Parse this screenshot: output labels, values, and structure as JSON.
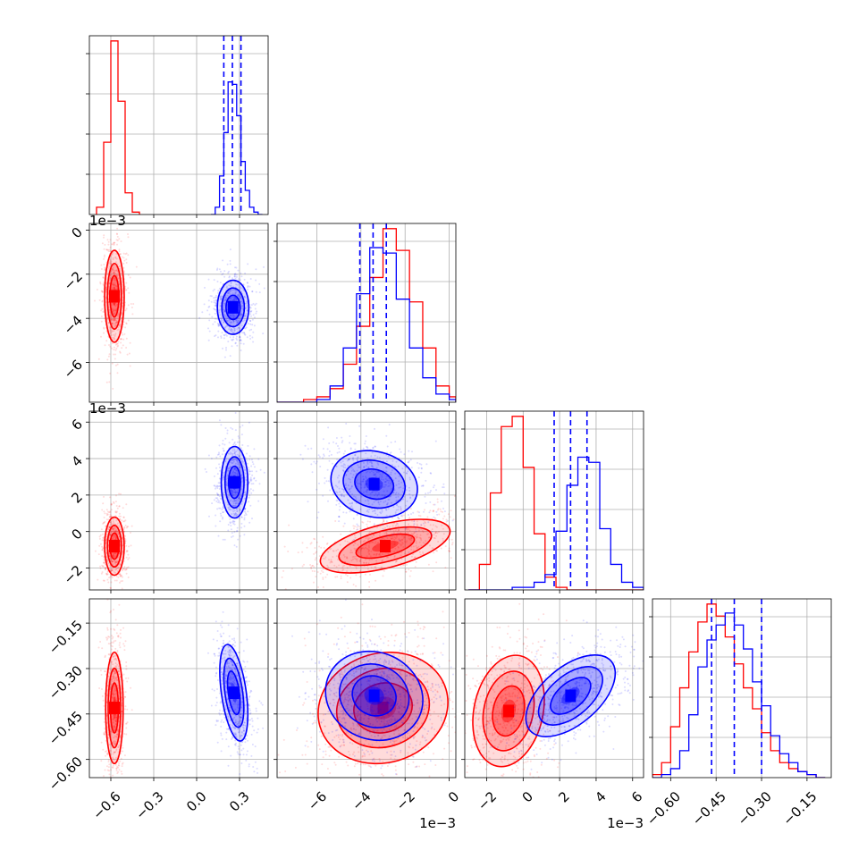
{
  "chart_data": {
    "type": "corner",
    "series": [
      {
        "name": "",
        "color": "#ff0000"
      },
      {
        "name": "",
        "color": "#0000ff"
      }
    ],
    "parameters": [
      {
        "lim": [
          -0.75,
          0.5
        ],
        "ticks": [
          -0.6,
          -0.3,
          0.0,
          0.3
        ],
        "tick_labels": [
          "−0.6",
          "−0.3",
          "0.0",
          "0.3"
        ]
      },
      {
        "lim": [
          -0.0078,
          0.0003
        ],
        "ticks": [
          -0.006,
          -0.004,
          -0.002,
          0.0
        ],
        "tick_labels": [
          "−6",
          "−4",
          "−2",
          "0"
        ],
        "offset": "1e−3"
      },
      {
        "lim": [
          -0.0032,
          0.0066
        ],
        "ticks": [
          -0.002,
          0.0,
          0.002,
          0.004,
          0.006
        ],
        "tick_labels": [
          "−2",
          "0",
          "2",
          "4",
          "6"
        ],
        "offset": "1e−3"
      },
      {
        "lim": [
          -0.66,
          -0.07
        ],
        "ticks": [
          -0.6,
          -0.45,
          -0.3,
          -0.15
        ],
        "tick_labels": [
          "−0.60",
          "−0.45",
          "−0.30",
          "−0.15"
        ]
      }
    ],
    "quantiles_blue": [
      [
        0.19,
        0.25,
        0.31
      ],
      [
        -0.00405,
        -0.00345,
        -0.00285
      ],
      [
        0.0017,
        0.0026,
        0.0035
      ],
      [
        -0.465,
        -0.39,
        -0.3
      ]
    ],
    "histograms": [
      {
        "edges": [
          -0.7,
          -0.65,
          -0.6,
          -0.55,
          -0.5,
          -0.45,
          -0.4
        ],
        "red": [
          3,
          30,
          72,
          47,
          9,
          1
        ],
        "blue_edges": [
          0.1,
          0.13,
          0.16,
          0.19,
          0.22,
          0.25,
          0.28,
          0.31,
          0.34,
          0.37,
          0.4,
          0.43,
          0.46
        ],
        "blue": [
          0,
          3,
          16,
          34,
          55,
          54,
          41,
          22,
          10,
          3,
          1,
          0
        ]
      },
      {
        "edges": [
          -0.0078,
          -0.0072,
          -0.0066,
          -0.006,
          -0.0054,
          -0.0048,
          -0.0042,
          -0.0036,
          -0.003,
          -0.0024,
          -0.0018,
          -0.0012,
          -0.0006,
          0.0,
          0.0003
        ],
        "red": [
          0,
          0,
          1,
          2,
          5,
          14,
          28,
          46,
          64,
          56,
          37,
          20,
          6,
          2
        ],
        "blue": [
          0,
          0,
          0,
          1,
          6,
          20,
          40,
          57,
          55,
          38,
          20,
          9,
          3,
          1
        ]
      },
      {
        "edges": [
          -0.003,
          -0.0024,
          -0.0018,
          -0.0012,
          -0.0006,
          0.0,
          0.0006,
          0.0012,
          0.0018,
          0.0024,
          0.003,
          0.0036,
          0.0042,
          0.0048,
          0.0054,
          0.006,
          0.0066
        ],
        "red": [
          0,
          10,
          38,
          64,
          68,
          48,
          22,
          5,
          1,
          0,
          0,
          0,
          0,
          0,
          0,
          0
        ],
        "blue": [
          0,
          0,
          0,
          0,
          1,
          1,
          3,
          6,
          23,
          41,
          52,
          50,
          24,
          10,
          3,
          1
        ]
      },
      {
        "edges": [
          -0.66,
          -0.63,
          -0.6,
          -0.57,
          -0.54,
          -0.51,
          -0.48,
          -0.45,
          -0.42,
          -0.39,
          -0.36,
          -0.33,
          -0.3,
          -0.27,
          -0.24,
          -0.21,
          -0.18,
          -0.15,
          -0.12,
          -0.09
        ],
        "red": [
          1,
          5,
          17,
          30,
          42,
          52,
          58,
          54,
          47,
          38,
          30,
          23,
          15,
          9,
          5,
          3,
          2,
          1,
          0
        ],
        "blue": [
          0,
          1,
          3,
          9,
          21,
          37,
          46,
          51,
          55,
          51,
          43,
          32,
          24,
          14,
          8,
          5,
          2,
          1,
          0
        ]
      }
    ],
    "blobs_2d": [
      {
        "row": 1,
        "col": 0,
        "red": {
          "center": [
            -0.575,
            -0.003
          ],
          "sigma": [
            0.028,
            0.00085
          ],
          "rho": 0.0
        },
        "blue": {
          "center": [
            0.255,
            -0.0035
          ],
          "sigma": [
            0.045,
            0.0005
          ],
          "rho": 0.0
        }
      },
      {
        "row": 2,
        "col": 0,
        "red": {
          "center": [
            -0.575,
            -0.0008
          ],
          "sigma": [
            0.028,
            0.00065
          ],
          "rho": 0.0
        },
        "blue": {
          "center": [
            0.265,
            0.0027
          ],
          "sigma": [
            0.038,
            0.0008
          ],
          "rho": 0.0
        }
      },
      {
        "row": 2,
        "col": 1,
        "red": {
          "center": [
            -0.0029,
            -0.0008
          ],
          "sigma": [
            0.0012,
            0.0006
          ],
          "rho": 0.55
        },
        "blue": {
          "center": [
            -0.0034,
            0.0026
          ],
          "sigma": [
            0.0008,
            0.00075
          ],
          "rho": -0.15
        }
      },
      {
        "row": 3,
        "col": 0,
        "red": {
          "center": [
            -0.575,
            -0.43
          ],
          "sigma": [
            0.025,
            0.075
          ],
          "rho": 0.0
        },
        "blue": {
          "center": [
            0.26,
            -0.38
          ],
          "sigma": [
            0.04,
            0.065
          ],
          "rho": -0.45
        }
      },
      {
        "row": 3,
        "col": 1,
        "red": {
          "center": [
            -0.003,
            -0.43
          ],
          "sigma": [
            0.0012,
            0.075
          ],
          "rho": 0.1
        },
        "blue": {
          "center": [
            -0.0034,
            -0.39
          ],
          "sigma": [
            0.0009,
            0.06
          ],
          "rho": -0.1
        }
      },
      {
        "row": 3,
        "col": 2,
        "red": {
          "center": [
            -0.0008,
            -0.44
          ],
          "sigma": [
            0.0008,
            0.075
          ],
          "rho": 0.2
        },
        "blue": {
          "center": [
            0.0026,
            -0.39
          ],
          "sigma": [
            0.001,
            0.055
          ],
          "rho": 0.55
        }
      }
    ]
  }
}
